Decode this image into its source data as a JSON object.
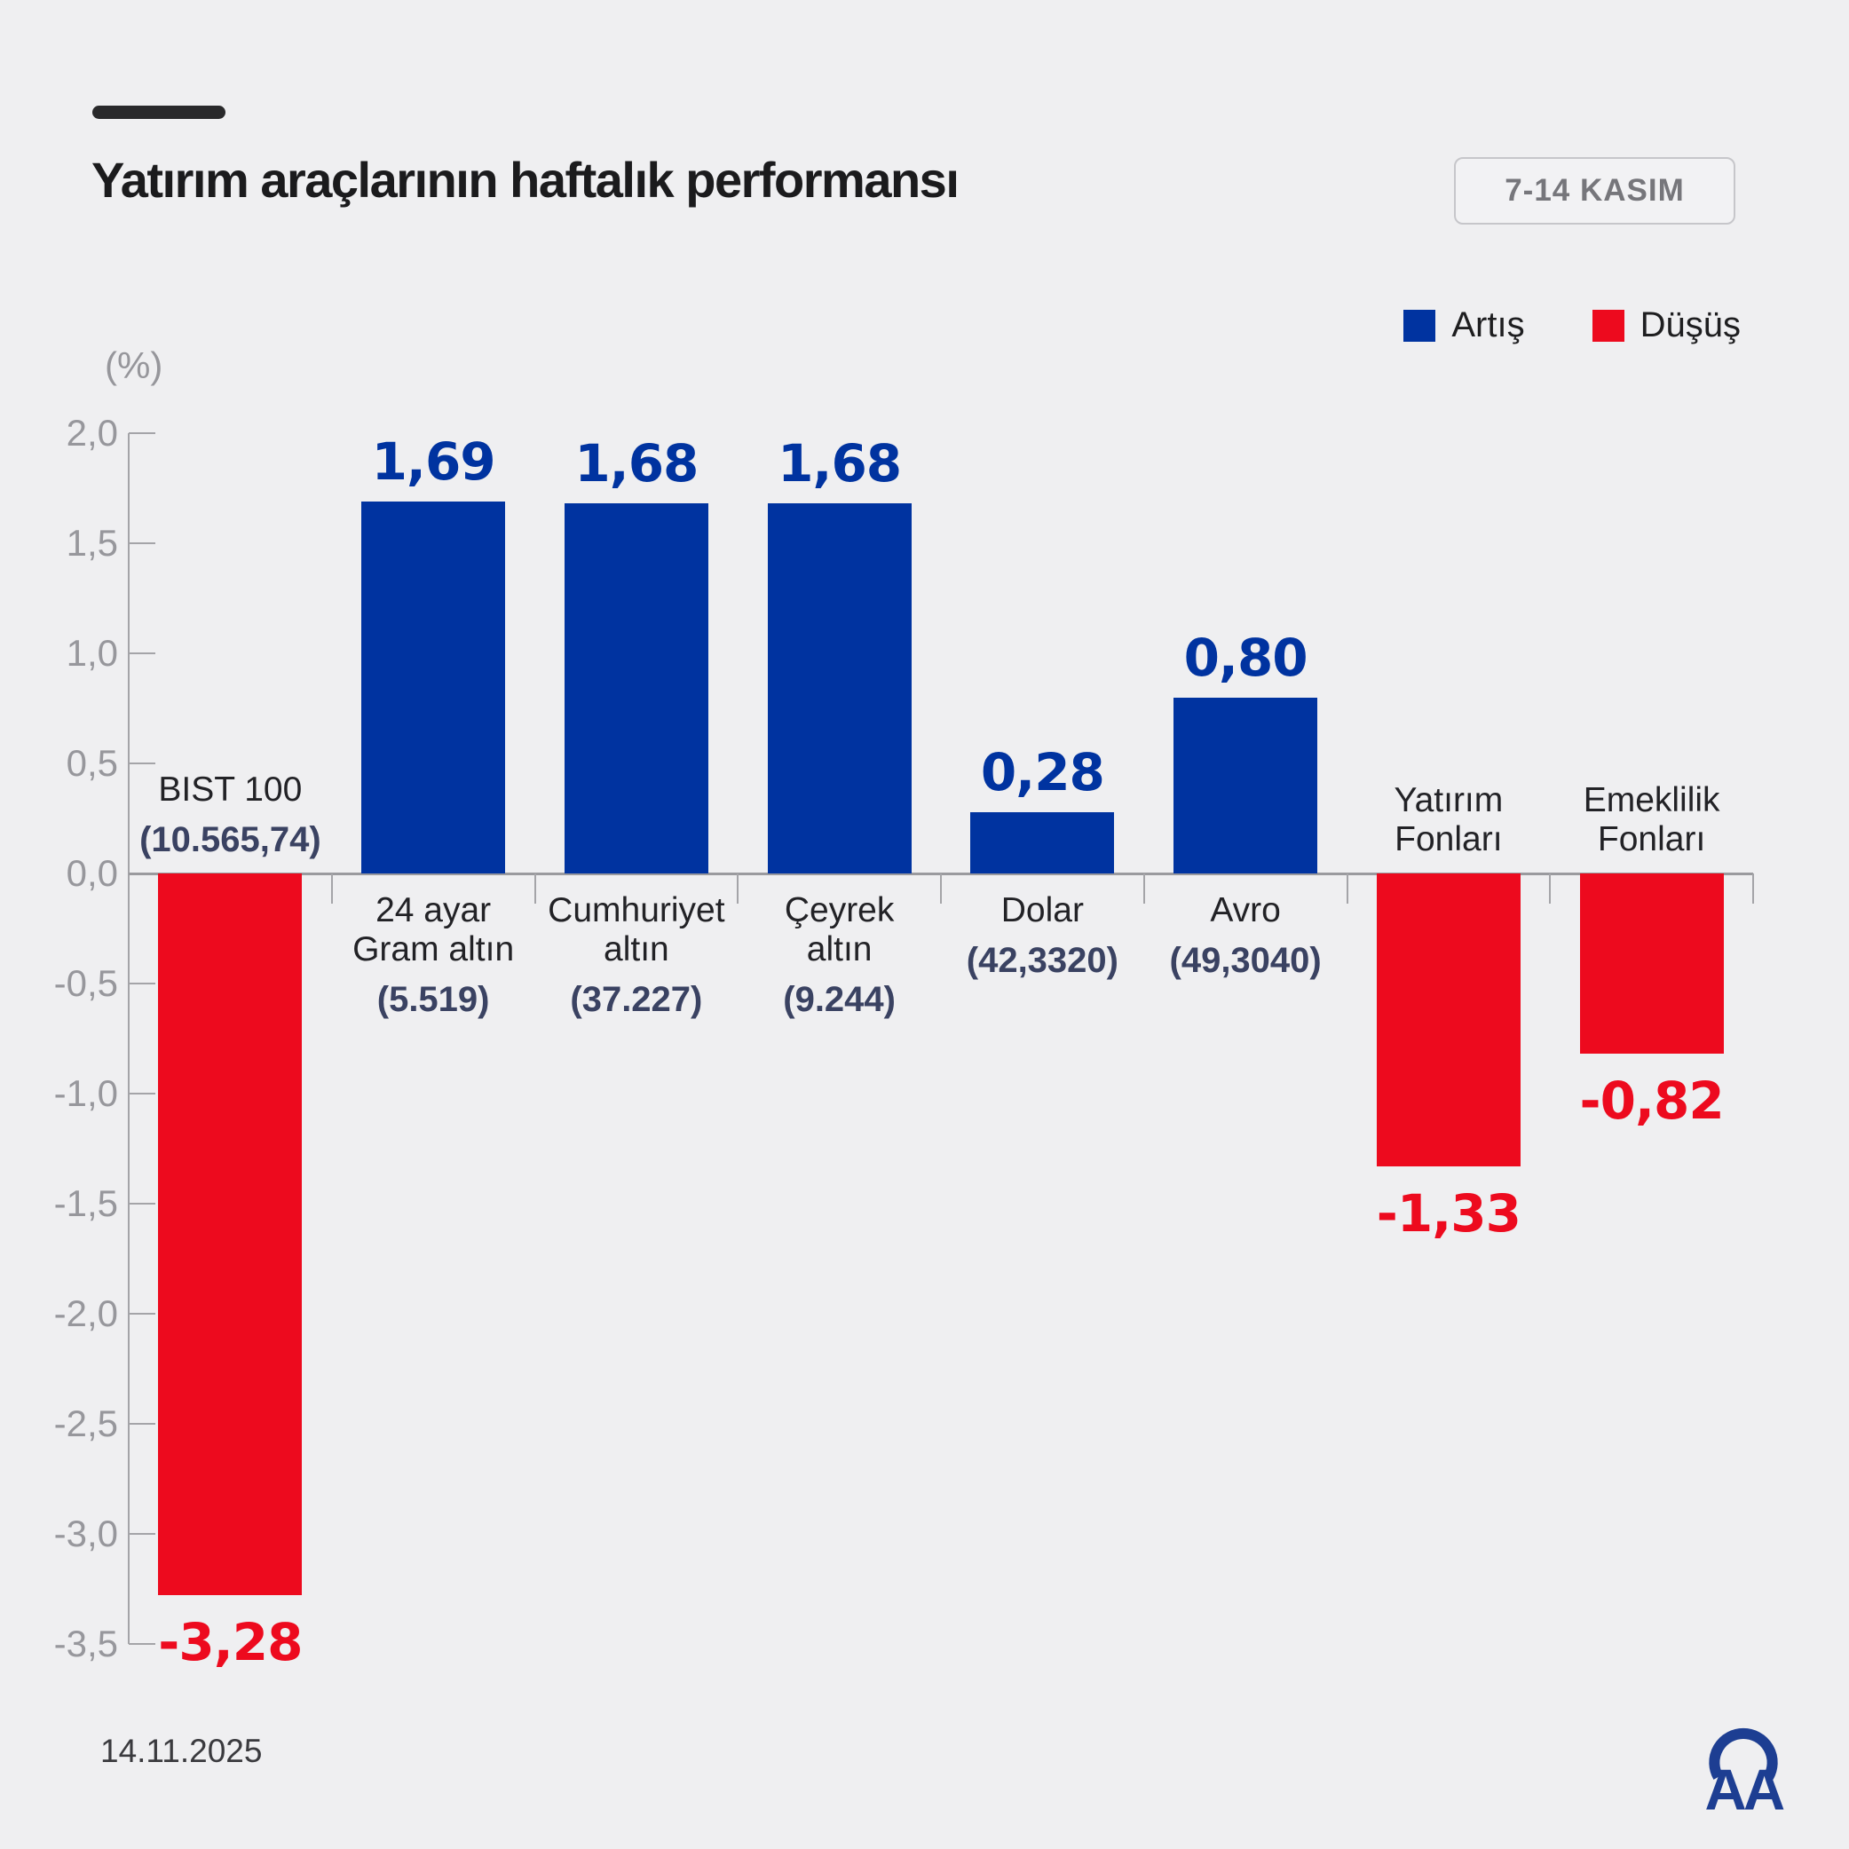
{
  "header": {
    "title": "Yatırım araçlarının haftalık performansı",
    "badge": "7-14 KASIM"
  },
  "legend": {
    "items": [
      {
        "label": "Artış",
        "color": "#0033A0"
      },
      {
        "label": "Düşüş",
        "color": "#ED0A1E"
      }
    ]
  },
  "chart_data": {
    "type": "bar",
    "title": "Yatırım araçlarının haftalık performansı",
    "unit_label": "(%)",
    "ylim": [
      -3.5,
      2.0
    ],
    "ytick_step": 0.5,
    "grid": false,
    "legend_position": "top-right",
    "colors": {
      "positive": "#0033A0",
      "negative": "#ED0A1E",
      "axis": "#A4A4A8",
      "tick_text": "#97979C"
    },
    "yticks": [
      {
        "value": 2.0,
        "label": "2,0"
      },
      {
        "value": 1.5,
        "label": "1,5"
      },
      {
        "value": 1.0,
        "label": "1,0"
      },
      {
        "value": 0.5,
        "label": "0,5"
      },
      {
        "value": 0.0,
        "label": "0,0"
      },
      {
        "value": -0.5,
        "label": "-0,5"
      },
      {
        "value": -1.0,
        "label": "-1,0"
      },
      {
        "value": -1.5,
        "label": "-1,5"
      },
      {
        "value": -2.0,
        "label": "-2,0"
      },
      {
        "value": -2.5,
        "label": "-2,5"
      },
      {
        "value": -3.0,
        "label": "-3,0"
      },
      {
        "value": -3.5,
        "label": "-3,5"
      }
    ],
    "categories": [
      "BIST 100",
      "24 ayar Gram altın",
      "Cumhuriyet altın",
      "Çeyrek altın",
      "Dolar",
      "Avro",
      "Yatırım Fonları",
      "Emeklilik Fonları"
    ],
    "bars": [
      {
        "category": "BIST 100",
        "name_lines": [
          "BIST 100"
        ],
        "sub_value": "(10.565,74)",
        "value": -3.28,
        "value_label": "-3,28",
        "label_side": "above"
      },
      {
        "category": "24 ayar Gram altın",
        "name_lines": [
          "24 ayar",
          "Gram altın"
        ],
        "sub_value": "(5.519)",
        "value": 1.69,
        "value_label": "1,69",
        "label_side": "below"
      },
      {
        "category": "Cumhuriyet altın",
        "name_lines": [
          "Cumhuriyet",
          "altın"
        ],
        "sub_value": "(37.227)",
        "value": 1.68,
        "value_label": "1,68",
        "label_side": "below"
      },
      {
        "category": "Çeyrek altın",
        "name_lines": [
          "Çeyrek",
          "altın"
        ],
        "sub_value": "(9.244)",
        "value": 1.68,
        "value_label": "1,68",
        "label_side": "below"
      },
      {
        "category": "Dolar",
        "name_lines": [
          "Dolar"
        ],
        "sub_value": "(42,3320)",
        "value": 0.28,
        "value_label": "0,28",
        "label_side": "below"
      },
      {
        "category": "Avro",
        "name_lines": [
          "Avro"
        ],
        "sub_value": "(49,3040)",
        "value": 0.8,
        "value_label": "0,80",
        "label_side": "below"
      },
      {
        "category": "Yatırım Fonları",
        "name_lines": [
          "Yatırım",
          "Fonları"
        ],
        "sub_value": null,
        "value": -1.33,
        "value_label": "-1,33",
        "label_side": "above"
      },
      {
        "category": "Emeklilik Fonları",
        "name_lines": [
          "Emeklilik",
          "Fonları"
        ],
        "sub_value": null,
        "value": -0.82,
        "value_label": "-0,82",
        "label_side": "above"
      }
    ]
  },
  "footer": {
    "date": "14.11.2025",
    "logo": "AA"
  }
}
